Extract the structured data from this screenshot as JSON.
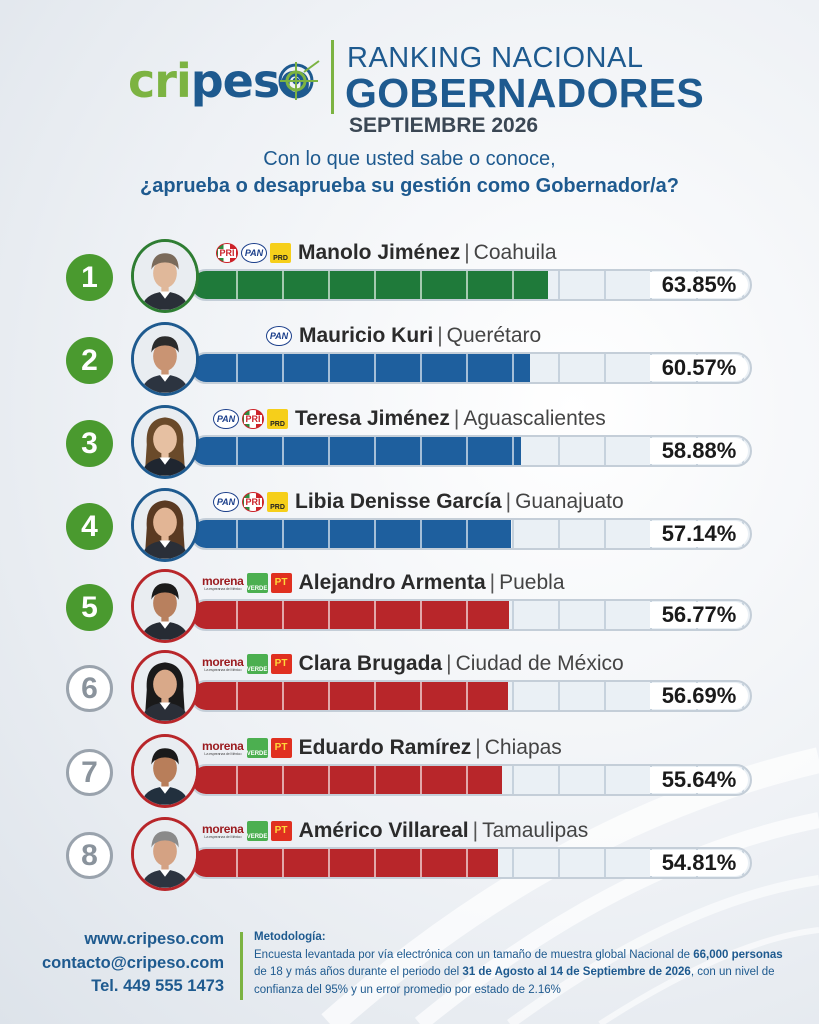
{
  "header": {
    "logo_part1": "cri",
    "logo_part2": "peso",
    "title_line1": "RANKING NACIONAL",
    "title_line2": "GOBERNADORES",
    "title_line3": "SEPTIEMBRE 2026"
  },
  "question": {
    "line1": "Con lo que usted sabe o conoce,",
    "line2": "¿aprueba o desaprueba su gestión como Gobernador/a?"
  },
  "colors": {
    "green_fill": "#1f7a3a",
    "blue_fill": "#1e5f9e",
    "red_fill": "#b8262a",
    "green_ring": "#2e7d32",
    "blue_ring": "#1e5a8f",
    "red_ring": "#b8262a"
  },
  "chart_data": {
    "type": "bar",
    "title": "RANKING NACIONAL GOBERNADORES",
    "xlim": [
      0,
      100
    ],
    "categories": [
      "Manolo Jiménez",
      "Mauricio Kuri",
      "Teresa Jiménez",
      "Libia Denisse García",
      "Alejandro Armenta",
      "Clara Brugada",
      "Eduardo Ramírez",
      "Américo Villareal"
    ],
    "values": [
      63.85,
      60.57,
      58.88,
      57.14,
      56.77,
      56.69,
      55.64,
      54.81
    ]
  },
  "rows": [
    {
      "rank": "1",
      "badge": "solid",
      "name": "Manolo Jiménez",
      "separator": "|",
      "state": "Coahuila",
      "pct_label": "63.85%",
      "value": 63.85,
      "color": "green",
      "parties": [
        "PRI",
        "PAN",
        "PRD"
      ]
    },
    {
      "rank": "2",
      "badge": "solid",
      "name": "Mauricio Kuri",
      "separator": "|",
      "state": "Querétaro",
      "pct_label": "60.57%",
      "value": 60.57,
      "color": "blue",
      "parties": [
        "PAN"
      ]
    },
    {
      "rank": "3",
      "badge": "solid",
      "name": "Teresa Jiménez",
      "separator": "|",
      "state": "Aguascalientes",
      "pct_label": "58.88%",
      "value": 58.88,
      "color": "blue",
      "parties": [
        "PAN",
        "PRI",
        "PRD"
      ]
    },
    {
      "rank": "4",
      "badge": "solid",
      "name": "Libia Denisse García",
      "separator": "|",
      "state": "Guanajuato",
      "pct_label": "57.14%",
      "value": 57.14,
      "color": "blue",
      "parties": [
        "PAN",
        "PRI",
        "PRD"
      ]
    },
    {
      "rank": "5",
      "badge": "solid",
      "name": "Alejandro Armenta",
      "separator": "|",
      "state": "Puebla",
      "pct_label": "56.77%",
      "value": 56.77,
      "color": "red",
      "parties": [
        "morena",
        "VERDE",
        "PT"
      ]
    },
    {
      "rank": "6",
      "badge": "outline",
      "name": "Clara Brugada",
      "separator": "|",
      "state": "Ciudad de México",
      "pct_label": "56.69%",
      "value": 56.69,
      "color": "red",
      "parties": [
        "morena",
        "VERDE",
        "PT"
      ]
    },
    {
      "rank": "7",
      "badge": "outline",
      "name": "Eduardo Ramírez",
      "separator": "|",
      "state": "Chiapas",
      "pct_label": "55.64%",
      "value": 55.64,
      "color": "red",
      "parties": [
        "morena",
        "VERDE",
        "PT"
      ]
    },
    {
      "rank": "8",
      "badge": "outline",
      "name": "Américo Villareal",
      "separator": "|",
      "state": "Tamaulipas",
      "pct_label": "54.81%",
      "value": 54.81,
      "color": "red",
      "parties": [
        "morena",
        "VERDE",
        "PT"
      ]
    }
  ],
  "party_texts": {
    "PRI": "PRI",
    "PAN": "PAN",
    "PRD": "PRD",
    "morena": "morena",
    "morena_sub": "La esperanza de México",
    "VERDE": "VERDE",
    "PT": "PT"
  },
  "footer": {
    "website": "www.cripeso.com",
    "email": "contacto@cripeso.com",
    "phone": "Tel. 449 555 1473",
    "method_title": "Metodología:",
    "method_p1": "Encuesta levantada por vía electrónica con un tamaño de muestra global Nacional de",
    "method_b1": "66,000 personas",
    "method_p2": " de 18 y más años durante el periodo del ",
    "method_b2": "31 de Agosto al 14 de Septiembre de 2026",
    "method_p3": ", con un nivel de confianza del 95% y un error promedio por estado de 2.16%"
  }
}
